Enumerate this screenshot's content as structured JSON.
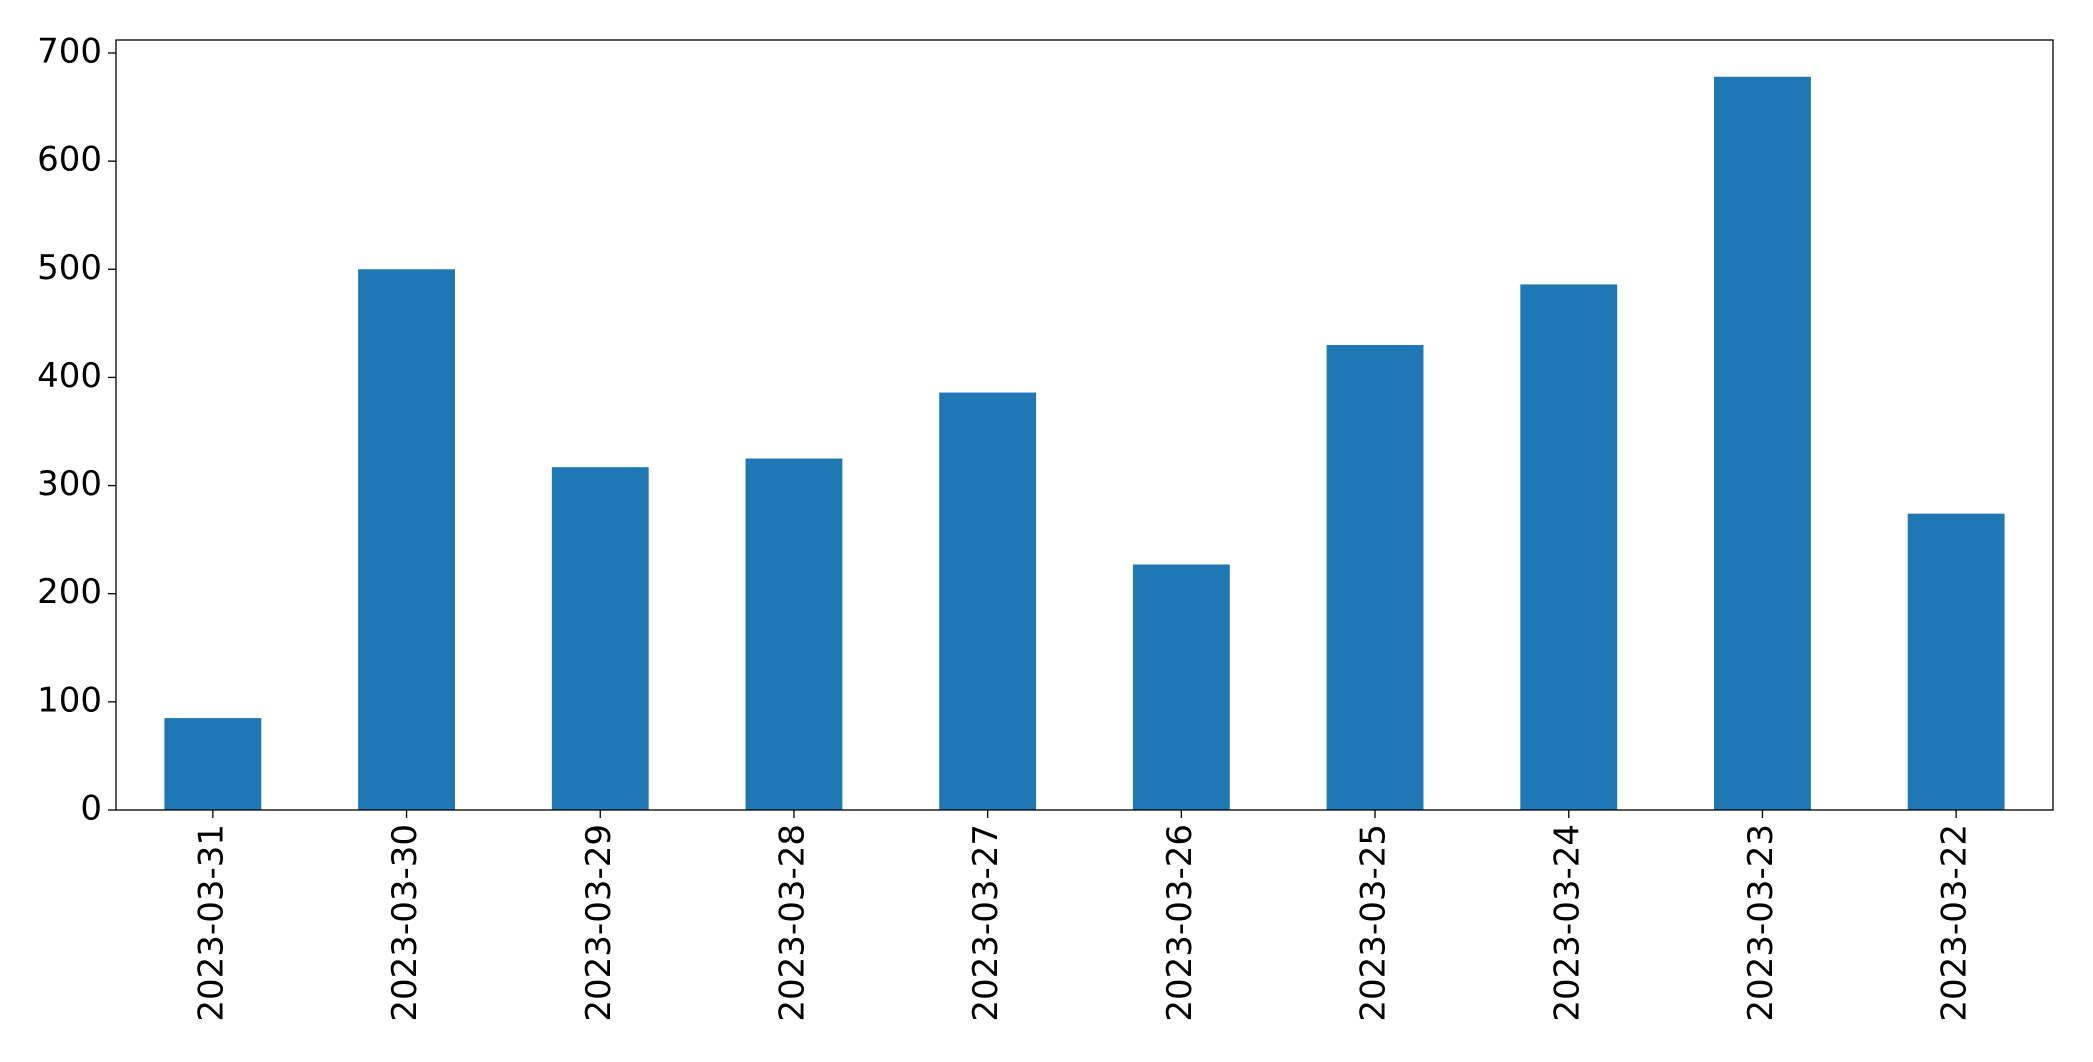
{
  "chart_data": {
    "type": "bar",
    "categories": [
      "2023-03-31",
      "2023-03-30",
      "2023-03-29",
      "2023-03-28",
      "2023-03-27",
      "2023-03-26",
      "2023-03-25",
      "2023-03-24",
      "2023-03-23",
      "2023-03-22"
    ],
    "values": [
      85,
      500,
      317,
      325,
      386,
      227,
      430,
      486,
      678,
      274
    ],
    "color": "#1f77b4",
    "ylim": [
      0,
      712
    ],
    "yticks": [
      0,
      100,
      200,
      300,
      400,
      500,
      600,
      700
    ],
    "grid": false
  }
}
